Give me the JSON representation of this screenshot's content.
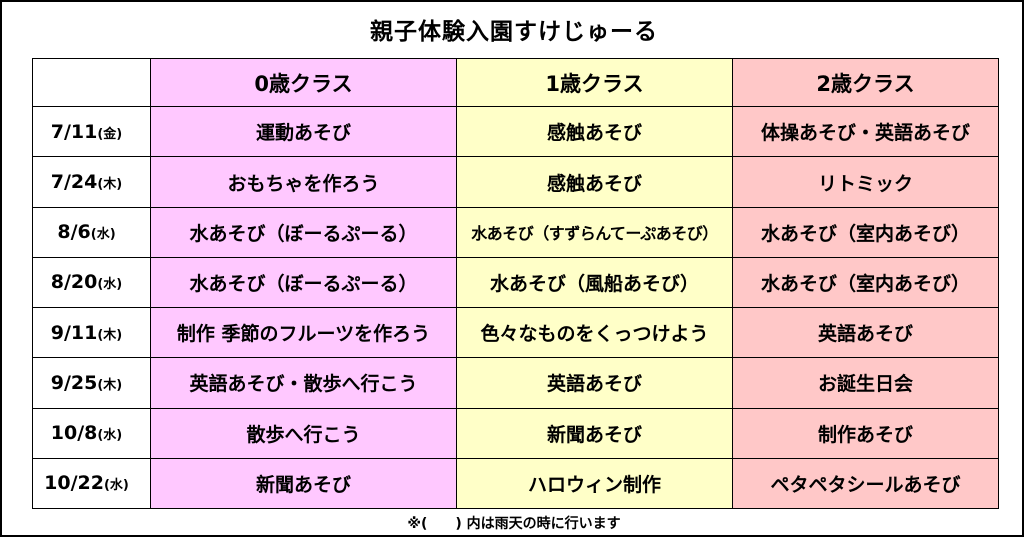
{
  "title": "親子体験入園すけじゅーる",
  "headers": [
    "0歳クラス",
    "1歳クラス",
    "2歳クラス"
  ],
  "rows": [
    {
      "date": "7/11",
      "weekday": "(金)",
      "c0": "運動あそび",
      "c1": "感触あそび",
      "c2": "体操あそび・英語あそび"
    },
    {
      "date": "7/24",
      "weekday": "(木)",
      "c0": "おもちゃを作ろう",
      "c1": "感触あそび",
      "c2": "リトミック"
    },
    {
      "date": "8/6",
      "weekday": "(水)",
      "c0": "水あそび（ぼーるぷーる）",
      "c1": "水あそび（すずらんてーぷあそび）",
      "c2": "水あそび（室内あそび）"
    },
    {
      "date": "8/20",
      "weekday": "(水)",
      "c0": "水あそび（ぼーるぷーる）",
      "c1": "水あそび（風船あそび）",
      "c2": "水あそび（室内あそび）"
    },
    {
      "date": "9/11",
      "weekday": "(木)",
      "c0": "制作 季節のフルーツを作ろう",
      "c1": "色々なものをくっつけよう",
      "c2": "英語あそび"
    },
    {
      "date": "9/25",
      "weekday": "(木)",
      "c0": "英語あそび・散歩へ行こう",
      "c1": "英語あそび",
      "c2": "お誕生日会"
    },
    {
      "date": "10/8",
      "weekday": "(水)",
      "c0": "散歩へ行こう",
      "c1": "新聞あそび",
      "c2": "制作あそび"
    },
    {
      "date": "10/22",
      "weekday": "(水)",
      "c0": "新聞あそび",
      "c1": "ハロウィン制作",
      "c2": "ペタペタシールあそび"
    }
  ],
  "note": "※(　　) 内は雨天の時に行います",
  "colors": {
    "col0": "#ffc8ff",
    "col1": "#ffffc8",
    "col2": "#ffc8c8"
  }
}
